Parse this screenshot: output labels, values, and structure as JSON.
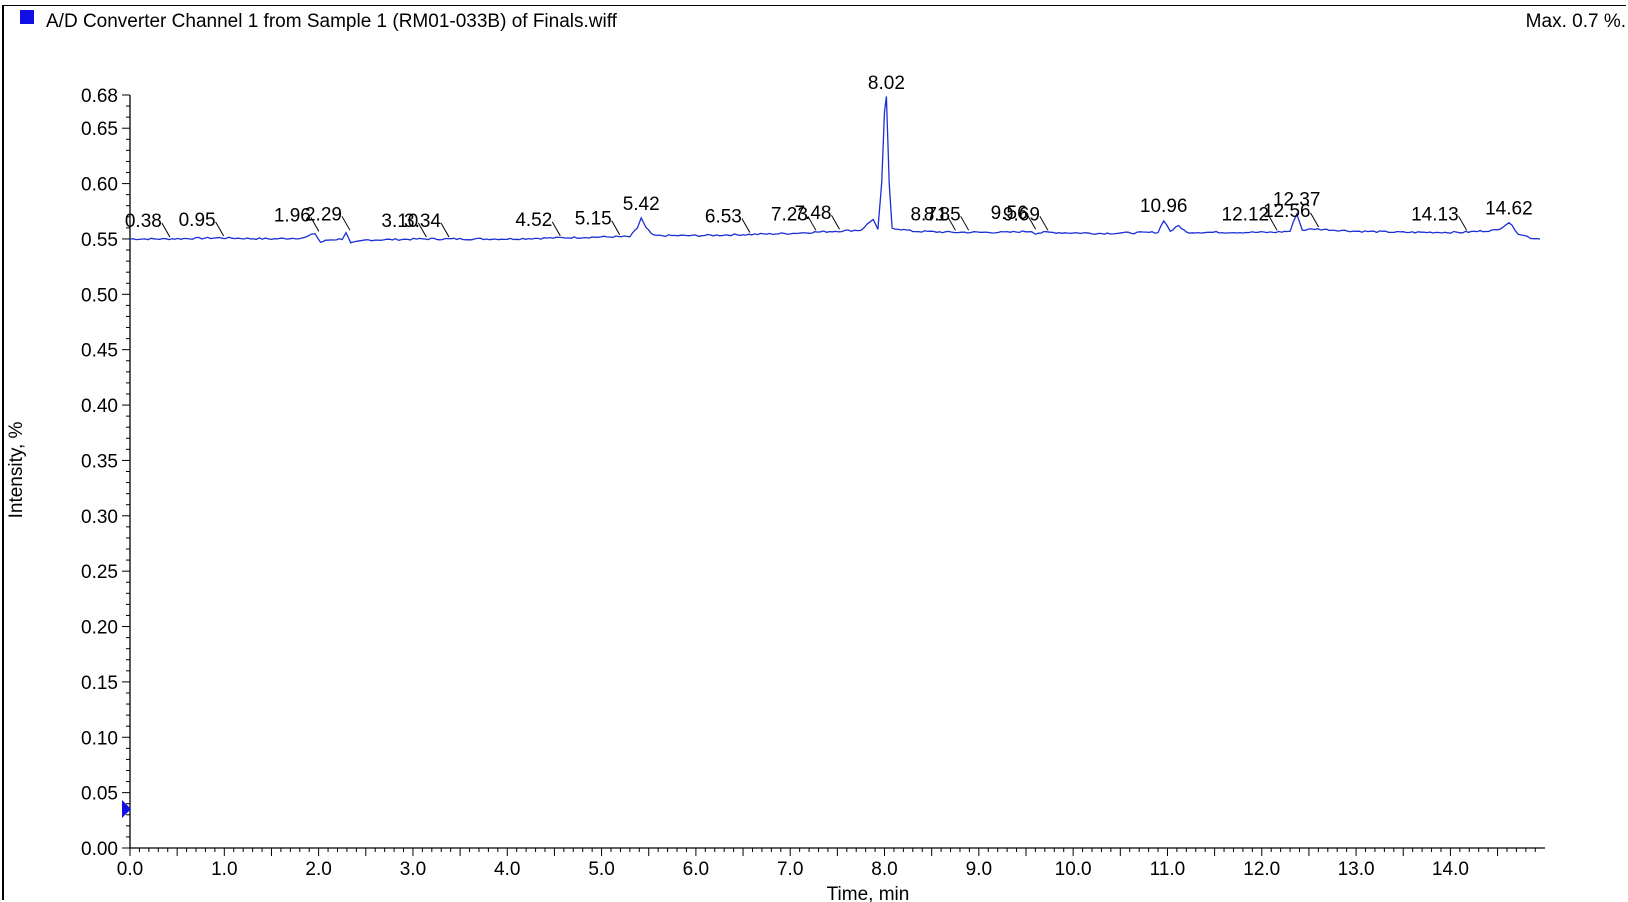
{
  "header": {
    "title": "A/D Converter Channel 1 from Sample 1 (RM01-033B) of Finals.wiff",
    "max_label": "Max. 0.7 %."
  },
  "colors": {
    "trace": "#1a2fd6",
    "marker": "#1010e6"
  },
  "chart_data": {
    "type": "line",
    "title": "A/D Converter Channel 1 from Sample 1 (RM01-033B) of Finals.wiff",
    "xlabel": "Time, min",
    "ylabel": "Intensity, %",
    "xlim": [
      0.0,
      14.95
    ],
    "ylim": [
      0.0,
      0.68
    ],
    "x_ticks": [
      "0.0",
      "1.0",
      "2.0",
      "3.0",
      "4.0",
      "5.0",
      "6.0",
      "7.0",
      "8.0",
      "9.0",
      "10.0",
      "11.0",
      "12.0",
      "13.0",
      "14.0"
    ],
    "y_ticks": [
      "0.00",
      "0.05",
      "0.10",
      "0.15",
      "0.20",
      "0.25",
      "0.30",
      "0.35",
      "0.40",
      "0.45",
      "0.50",
      "0.55",
      "0.60",
      "0.65",
      "0.68"
    ],
    "grid": false,
    "baseline": 0.55,
    "series": [
      {
        "points": [
          [
            0.0,
            0.55
          ],
          [
            0.38,
            0.55
          ],
          [
            0.95,
            0.551
          ],
          [
            1.5,
            0.55
          ],
          [
            1.85,
            0.551
          ],
          [
            1.96,
            0.555
          ],
          [
            2.02,
            0.547
          ],
          [
            2.1,
            0.549
          ],
          [
            2.25,
            0.55
          ],
          [
            2.29,
            0.556
          ],
          [
            2.34,
            0.546
          ],
          [
            2.5,
            0.549
          ],
          [
            3.1,
            0.55
          ],
          [
            3.34,
            0.55
          ],
          [
            4.0,
            0.55
          ],
          [
            4.52,
            0.551
          ],
          [
            5.15,
            0.552
          ],
          [
            5.3,
            0.552
          ],
          [
            5.38,
            0.56
          ],
          [
            5.42,
            0.569
          ],
          [
            5.47,
            0.56
          ],
          [
            5.55,
            0.553
          ],
          [
            6.0,
            0.553
          ],
          [
            6.53,
            0.554
          ],
          [
            7.0,
            0.555
          ],
          [
            7.23,
            0.556
          ],
          [
            7.48,
            0.557
          ],
          [
            7.75,
            0.558
          ],
          [
            7.88,
            0.568
          ],
          [
            7.93,
            0.558
          ],
          [
            7.97,
            0.6
          ],
          [
            8.0,
            0.665
          ],
          [
            8.02,
            0.678
          ],
          [
            8.05,
            0.6
          ],
          [
            8.08,
            0.56
          ],
          [
            8.3,
            0.557
          ],
          [
            8.71,
            0.556
          ],
          [
            8.85,
            0.556
          ],
          [
            9.3,
            0.556
          ],
          [
            9.56,
            0.557
          ],
          [
            9.6,
            0.555
          ],
          [
            9.69,
            0.556
          ],
          [
            10.3,
            0.555
          ],
          [
            10.9,
            0.556
          ],
          [
            10.96,
            0.567
          ],
          [
            11.03,
            0.557
          ],
          [
            11.12,
            0.562
          ],
          [
            11.2,
            0.556
          ],
          [
            11.8,
            0.556
          ],
          [
            12.12,
            0.556
          ],
          [
            12.3,
            0.557
          ],
          [
            12.37,
            0.573
          ],
          [
            12.43,
            0.558
          ],
          [
            12.56,
            0.559
          ],
          [
            13.0,
            0.557
          ],
          [
            13.5,
            0.556
          ],
          [
            14.13,
            0.556
          ],
          [
            14.5,
            0.558
          ],
          [
            14.62,
            0.565
          ],
          [
            14.72,
            0.555
          ],
          [
            14.85,
            0.551
          ],
          [
            14.95,
            0.55
          ]
        ]
      }
    ],
    "peak_labels": [
      {
        "x": 0.38,
        "text": "0.38"
      },
      {
        "x": 0.95,
        "text": "0.95"
      },
      {
        "x": 1.96,
        "text": "1.96"
      },
      {
        "x": 2.29,
        "text": "2.29"
      },
      {
        "x": 3.1,
        "text": "3.10"
      },
      {
        "x": 3.34,
        "text": "3.34"
      },
      {
        "x": 4.52,
        "text": "4.52"
      },
      {
        "x": 5.15,
        "text": "5.15"
      },
      {
        "x": 5.42,
        "text": "5.42"
      },
      {
        "x": 6.53,
        "text": "6.53"
      },
      {
        "x": 7.23,
        "text": "7.23"
      },
      {
        "x": 7.48,
        "text": "7.48"
      },
      {
        "x": 8.02,
        "text": "8.02"
      },
      {
        "x": 8.71,
        "text": "8.71"
      },
      {
        "x": 8.85,
        "text": "8.85"
      },
      {
        "x": 9.56,
        "text": "9.56"
      },
      {
        "x": 9.69,
        "text": "9.69"
      },
      {
        "x": 10.96,
        "text": "10.96"
      },
      {
        "x": 12.12,
        "text": "12.12"
      },
      {
        "x": 12.37,
        "text": "12.37"
      },
      {
        "x": 12.56,
        "text": "12.56"
      },
      {
        "x": 14.13,
        "text": "14.13"
      },
      {
        "x": 14.62,
        "text": "14.62"
      }
    ]
  }
}
